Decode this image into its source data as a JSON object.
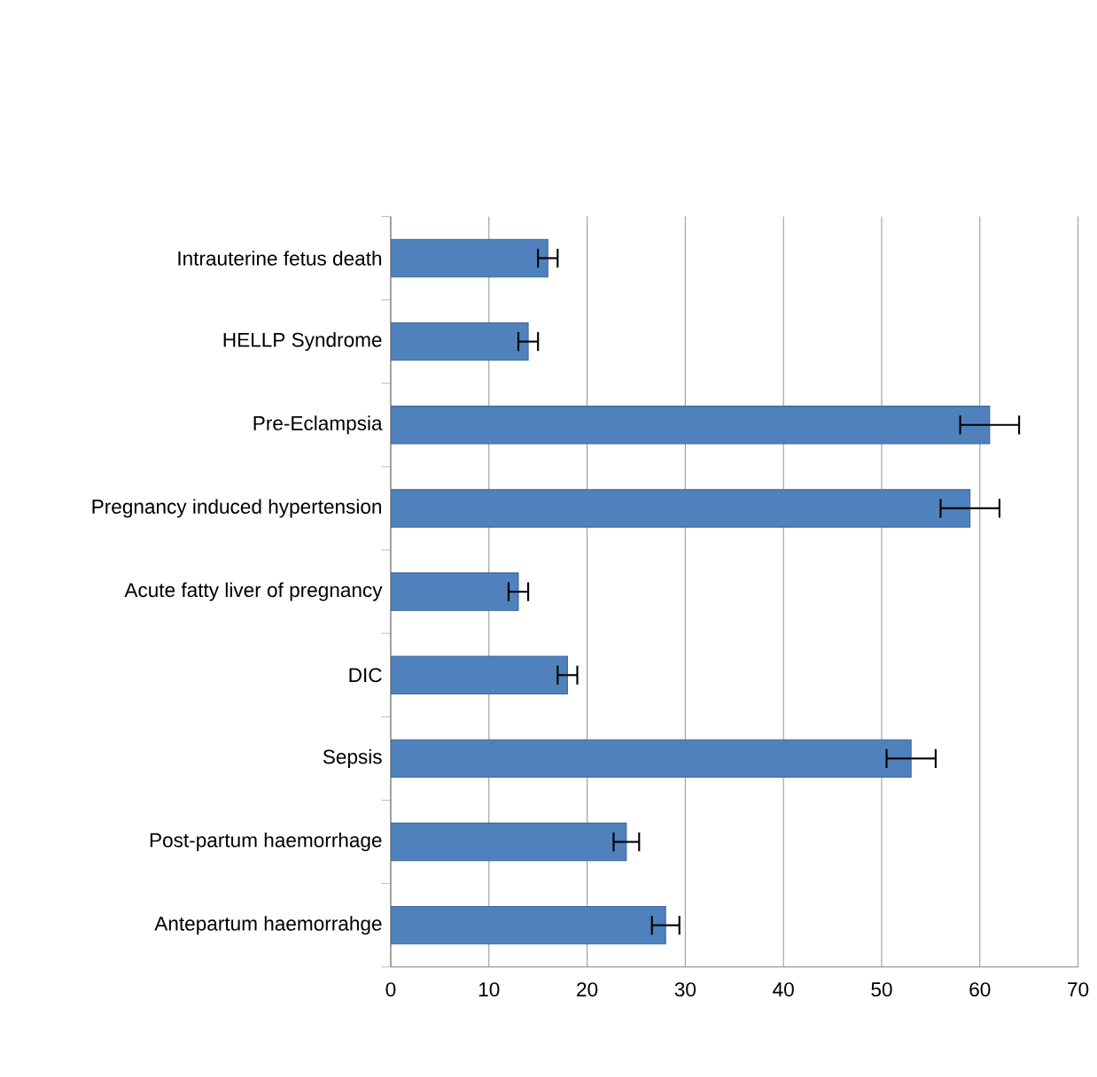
{
  "chart_data": {
    "type": "bar",
    "orientation": "horizontal",
    "categories": [
      "Intrauterine fetus death",
      "HELLP Syndrome",
      "Pre-Eclampsia",
      "Pregnancy induced hypertension",
      "Acute fatty liver of pregnancy",
      "DIC",
      "Sepsis",
      "Post-partum haemorrhage",
      "Antepartum haemorrahge"
    ],
    "values": [
      16,
      14,
      61,
      59,
      13,
      18,
      53,
      24,
      28
    ],
    "errors": [
      1,
      1,
      3,
      3,
      1,
      1,
      2.5,
      1.3,
      1.4
    ],
    "color": "#4f81bd",
    "xlim": [
      0,
      70
    ],
    "xticks": [
      0,
      10,
      20,
      30,
      40,
      50,
      60,
      70
    ],
    "grid": "x"
  }
}
